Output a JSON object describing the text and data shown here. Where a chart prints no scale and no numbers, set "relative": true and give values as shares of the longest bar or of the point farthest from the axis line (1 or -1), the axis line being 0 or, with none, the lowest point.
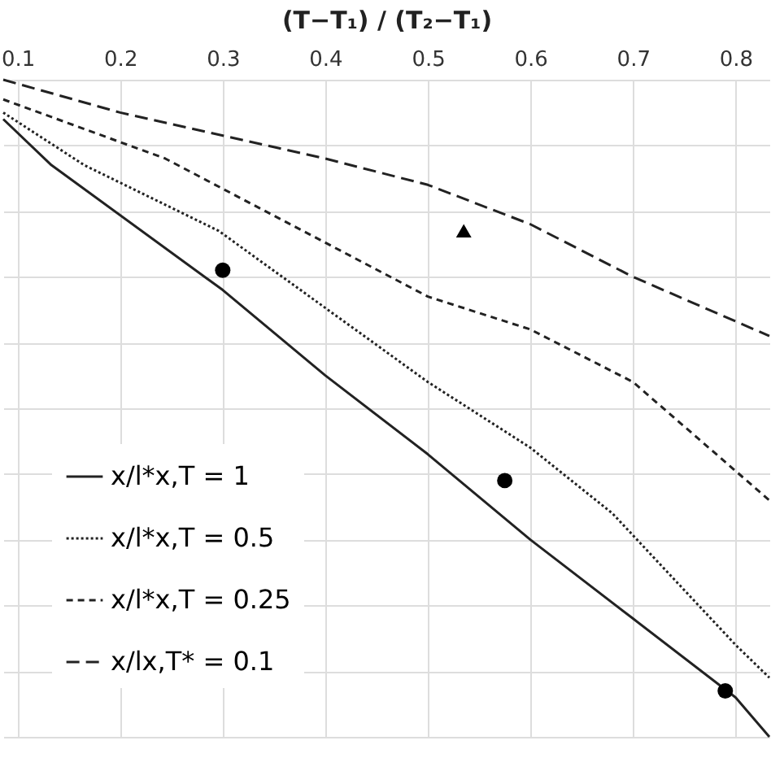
{
  "chart_data": {
    "type": "line",
    "relative": true,
    "xlabel": "(T−T₁) / (T₂−T₁)",
    "xlim": [
      0.086,
      0.833
    ],
    "xticks": [
      0.1,
      0.2,
      0.3,
      0.4,
      0.5,
      0.6,
      0.7,
      0.8
    ],
    "grid": true,
    "legend": "bottom left",
    "series": [
      {
        "name": "x/l*x,T = 1",
        "color": "#222222",
        "line_style": "solid",
        "x": [
          0.086,
          0.133,
          0.3,
          0.4,
          0.5,
          0.6,
          0.7,
          0.8,
          0.833
        ],
        "values": [
          0.94,
          0.87,
          0.68,
          0.55,
          0.43,
          0.3,
          0.18,
          0.06,
          0
        ]
      },
      {
        "name": "x/l*x,T = 0.5",
        "color": "#222222",
        "line_style": "dotted",
        "x": [
          0.086,
          0.165,
          0.296,
          0.5,
          0.6,
          0.68,
          0.8,
          0.833
        ],
        "values": [
          0.95,
          0.87,
          0.77,
          0.54,
          0.44,
          0.34,
          0.14,
          0.09
        ]
      },
      {
        "name": "x/l*x,T = 0.25",
        "color": "#222222",
        "line_style": "dashed",
        "x": [
          0.086,
          0.244,
          0.5,
          0.6,
          0.7,
          0.833
        ],
        "values": [
          0.97,
          0.88,
          0.67,
          0.62,
          0.54,
          0.36
        ]
      },
      {
        "name": "x/lx,T* = 0.1",
        "color": "#222222",
        "line_style": "dashed",
        "x": [
          0.086,
          0.2,
          0.4,
          0.5,
          0.6,
          0.7,
          0.833
        ],
        "values": [
          1.0,
          0.95,
          0.88,
          0.84,
          0.78,
          0.7,
          0.61
        ]
      },
      {
        "type": "scatter",
        "marker": "circle",
        "color": "#000000",
        "x": [
          0.3,
          0.575,
          0.79
        ],
        "values": [
          0.71,
          0.39,
          0.07
        ]
      },
      {
        "type": "scatter",
        "marker": "triangle",
        "color": "#000000",
        "x": [
          0.535
        ],
        "values": [
          0.77
        ]
      }
    ]
  }
}
